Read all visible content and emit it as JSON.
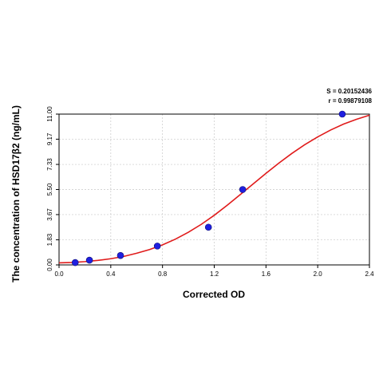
{
  "chart_data": {
    "type": "scatter",
    "title": "",
    "xlabel": "Corrected OD",
    "ylabel": "The concentration of HSD17β2 (ng/mL)",
    "xlim": [
      0.0,
      2.4
    ],
    "ylim": [
      0.0,
      11.0
    ],
    "x_ticks": [
      "0.0",
      "0.4",
      "0.8",
      "1.2",
      "1.6",
      "2.0",
      "2.4"
    ],
    "y_ticks": [
      "0.00",
      "1.83",
      "3.67",
      "5.50",
      "7.33",
      "9.17",
      "11.00"
    ],
    "grid": true,
    "stats": {
      "s": "S = 0.20152436",
      "r": "r = 0.99879108"
    },
    "series": [
      {
        "kind": "points",
        "color": "#1f1fe0",
        "x": [
          0.125,
          0.235,
          0.475,
          0.76,
          1.155,
          1.42,
          2.19
        ],
        "y": [
          0.172,
          0.344,
          0.6875,
          1.375,
          2.75,
          5.5,
          11.0
        ]
      },
      {
        "kind": "fitted-curve",
        "color": "#e01b1b",
        "x": [
          0.0,
          0.1,
          0.2,
          0.3,
          0.4,
          0.5,
          0.6,
          0.7,
          0.8,
          0.9,
          1.0,
          1.1,
          1.2,
          1.3,
          1.4,
          1.5,
          1.6,
          1.7,
          1.8,
          1.9,
          2.0,
          2.1,
          2.2,
          2.3,
          2.4
        ],
        "y": [
          0.15,
          0.18,
          0.24,
          0.33,
          0.45,
          0.62,
          0.85,
          1.12,
          1.46,
          1.88,
          2.38,
          2.96,
          3.62,
          4.35,
          5.12,
          5.9,
          6.68,
          7.43,
          8.13,
          8.77,
          9.34,
          9.84,
          10.27,
          10.62,
          10.92
        ]
      }
    ]
  }
}
